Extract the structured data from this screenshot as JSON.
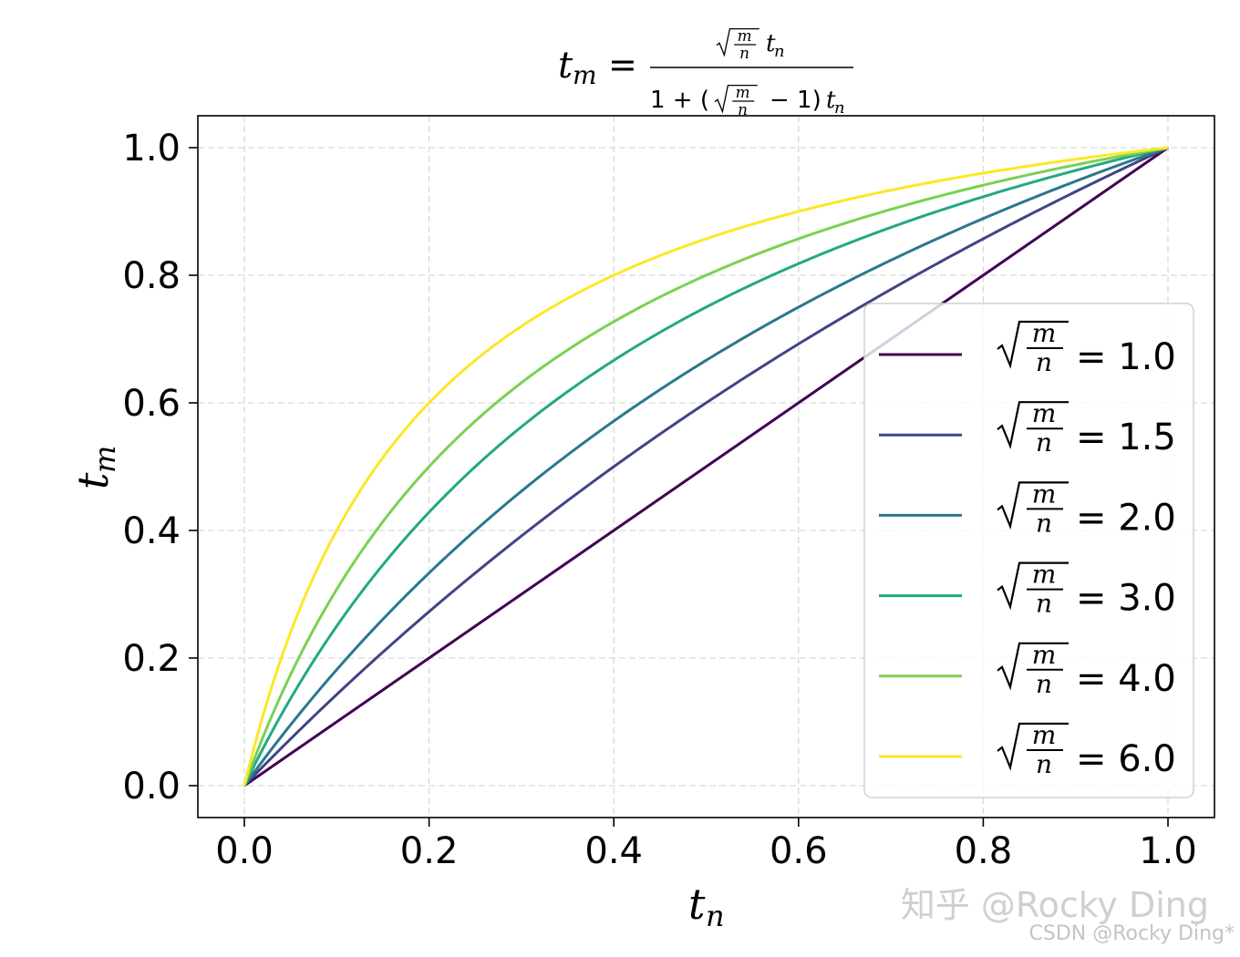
{
  "chart_data": {
    "type": "line",
    "title": "t_m = sqrt(m/n) t_n / (1 + (sqrt(m/n) - 1) t_n)",
    "xlabel": "t_n",
    "ylabel": "t_m",
    "xlim": [
      -0.05,
      1.05
    ],
    "ylim": [
      -0.05,
      1.05
    ],
    "xticks": [
      "0.0",
      "0.2",
      "0.4",
      "0.6",
      "0.8",
      "1.0"
    ],
    "yticks": [
      "0.0",
      "0.2",
      "0.4",
      "0.6",
      "0.8",
      "1.0"
    ],
    "grid": true,
    "legend_position": "center-right",
    "x": [
      0,
      0.05,
      0.1,
      0.15,
      0.2,
      0.25,
      0.3,
      0.35,
      0.4,
      0.45,
      0.5,
      0.55,
      0.6,
      0.65,
      0.7,
      0.75,
      0.8,
      0.85,
      0.9,
      0.95,
      1.0
    ],
    "series": [
      {
        "name": "√(m/n) = 1.0",
        "k": 1.0,
        "color": "#440154",
        "values": [
          0,
          0.05,
          0.1,
          0.15,
          0.2,
          0.25,
          0.3,
          0.35,
          0.4,
          0.45,
          0.5,
          0.55,
          0.6,
          0.65,
          0.7,
          0.75,
          0.8,
          0.85,
          0.9,
          0.95,
          1.0
        ]
      },
      {
        "name": "√(m/n) = 1.5",
        "k": 1.5,
        "color": "#414487",
        "values": [
          0,
          0.073,
          0.143,
          0.209,
          0.273,
          0.333,
          0.391,
          0.447,
          0.5,
          0.551,
          0.6,
          0.647,
          0.692,
          0.736,
          0.778,
          0.818,
          0.857,
          0.895,
          0.931,
          0.966,
          1.0
        ]
      },
      {
        "name": "√(m/n) = 2.0",
        "k": 2.0,
        "color": "#2a788e",
        "values": [
          0,
          0.095,
          0.182,
          0.261,
          0.333,
          0.4,
          0.462,
          0.519,
          0.571,
          0.621,
          0.667,
          0.71,
          0.75,
          0.788,
          0.824,
          0.857,
          0.889,
          0.919,
          0.947,
          0.974,
          1.0
        ]
      },
      {
        "name": "√(m/n) = 3.0",
        "k": 3.0,
        "color": "#22a884",
        "values": [
          0,
          0.136,
          0.25,
          0.346,
          0.429,
          0.5,
          0.563,
          0.618,
          0.667,
          0.711,
          0.75,
          0.786,
          0.818,
          0.848,
          0.875,
          0.9,
          0.923,
          0.944,
          0.964,
          0.983,
          1.0
        ]
      },
      {
        "name": "√(m/n) = 4.0",
        "k": 4.0,
        "color": "#7ad151",
        "values": [
          0,
          0.174,
          0.308,
          0.414,
          0.5,
          0.571,
          0.632,
          0.683,
          0.727,
          0.766,
          0.8,
          0.83,
          0.857,
          0.881,
          0.903,
          0.923,
          0.941,
          0.958,
          0.973,
          0.987,
          1.0
        ]
      },
      {
        "name": "√(m/n) = 6.0",
        "k": 6.0,
        "color": "#fde725",
        "values": [
          0,
          0.24,
          0.4,
          0.514,
          0.6,
          0.667,
          0.72,
          0.764,
          0.8,
          0.831,
          0.857,
          0.88,
          0.9,
          0.918,
          0.933,
          0.947,
          0.96,
          0.971,
          0.982,
          0.991,
          1.0
        ]
      }
    ]
  },
  "watermarks": {
    "zhihu": "知乎 @Rocky Ding",
    "csdn": "CSDN @Rocky Ding*"
  }
}
